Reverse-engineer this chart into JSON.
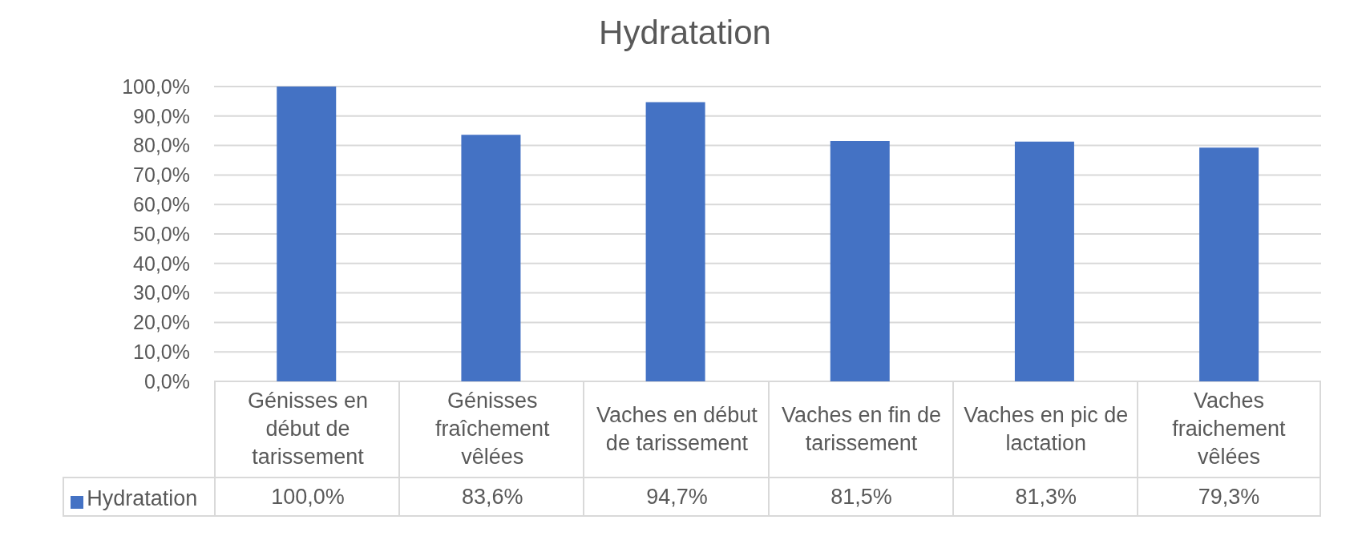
{
  "chart_data": {
    "type": "bar",
    "title": "Hydratation",
    "categories": [
      "Génisses en début de tarissement",
      "Génisses fraîchement vêlées",
      "Vaches en début de tarissement",
      "Vaches en fin de tarissement",
      "Vaches en pic de lactation",
      "Vaches fraichement vêlées"
    ],
    "series": [
      {
        "name": "Hydratation",
        "color": "#4472c4",
        "values": [
          100.0,
          83.6,
          94.7,
          81.5,
          81.3,
          79.3
        ],
        "value_labels": [
          "100,0%",
          "83,6%",
          "94,7%",
          "81,5%",
          "81,3%",
          "79,3%"
        ]
      }
    ],
    "ylim": [
      0,
      100
    ],
    "yticks": [
      {
        "value": 0,
        "label": "0,0%"
      },
      {
        "value": 10,
        "label": "10,0%"
      },
      {
        "value": 20,
        "label": "20,0%"
      },
      {
        "value": 30,
        "label": "30,0%"
      },
      {
        "value": 40,
        "label": "40,0%"
      },
      {
        "value": 50,
        "label": "50,0%"
      },
      {
        "value": 60,
        "label": "60,0%"
      },
      {
        "value": 70,
        "label": "70,0%"
      },
      {
        "value": 80,
        "label": "80,0%"
      },
      {
        "value": 90,
        "label": "90,0%"
      },
      {
        "value": 100,
        "label": "100,0%"
      }
    ],
    "grid": "y",
    "legend": "bottom left"
  }
}
